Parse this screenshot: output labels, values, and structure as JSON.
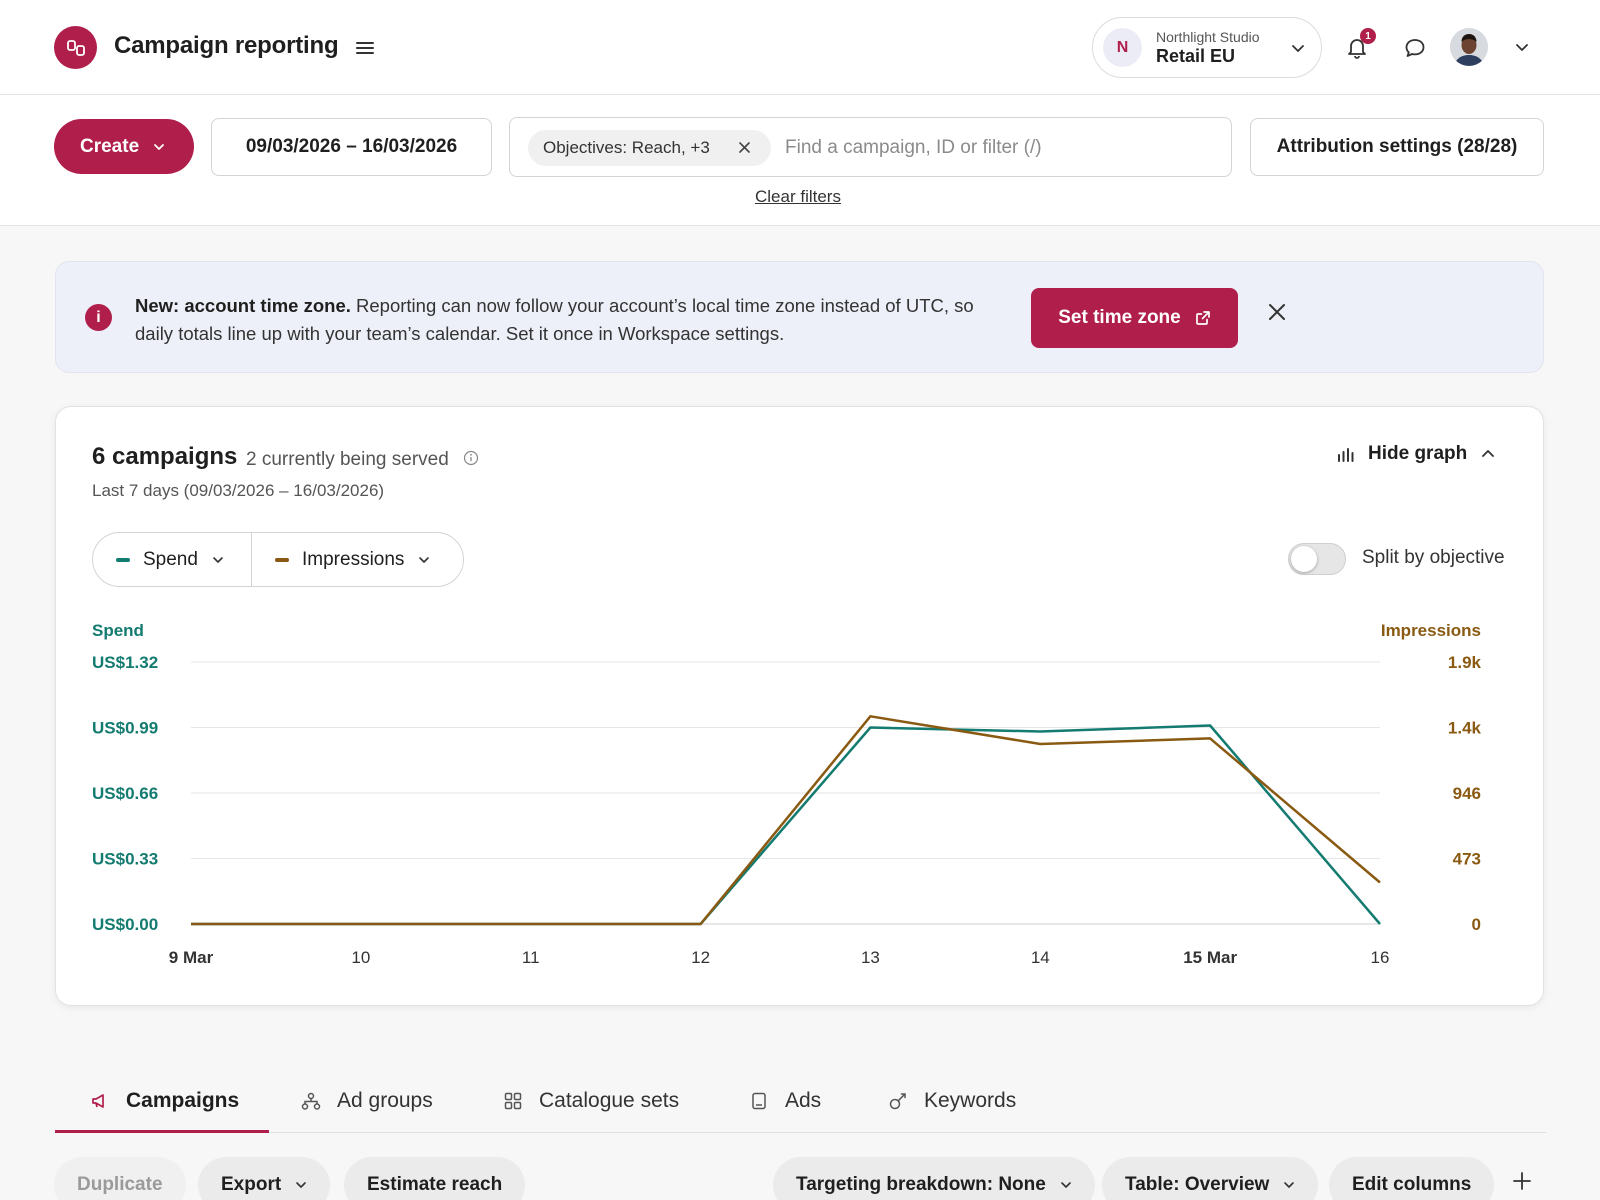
{
  "header": {
    "title": "Campaign reporting",
    "account_org": "Northlight Studio",
    "account_name": "Retail EU",
    "account_initial": "N",
    "notification_count": "1"
  },
  "filters": {
    "create_label": "Create",
    "date_range": "09/03/2026 – 16/03/2026",
    "chip_label": "Objectives: Reach, +3",
    "search_placeholder": "Find a campaign, ID or filter (/)",
    "clear_filters": "Clear filters",
    "attribution": "Attribution settings (28/28)"
  },
  "banner": {
    "bold": "New: account time zone.",
    "text": " Reporting can now follow your account’s local time zone instead of UTC, so daily totals line up with your team’s calendar. Set it once in Workspace settings.",
    "button": "Set time zone",
    "icon": "info-icon"
  },
  "card": {
    "title": "6 campaigns",
    "serving": "2 currently being served",
    "range": "Last 7 days (09/03/2026 – 16/03/2026)",
    "hide_graph": "Hide graph",
    "metric_1": "Spend",
    "metric_2": "Impressions",
    "split_label": "Split by objective",
    "split_enabled": false
  },
  "colors": {
    "brand": "#b01f4c",
    "spend": "#137b70",
    "impressions": "#8a5a12"
  },
  "chart_data": {
    "type": "line",
    "x": [
      "9 Mar",
      "10",
      "11",
      "12",
      "13",
      "14",
      "15 Mar",
      "16"
    ],
    "series": [
      {
        "name": "Spend",
        "axis": "left",
        "color": "#137b70",
        "values": [
          0,
          0,
          0,
          0,
          0.99,
          0.97,
          1.0,
          0
        ]
      },
      {
        "name": "Impressions",
        "axis": "right",
        "color": "#8a5a12",
        "values": [
          0,
          0,
          0,
          0,
          1500,
          1300,
          1340,
          300
        ]
      }
    ],
    "y_left": {
      "label": "Spend",
      "ticks": [
        "US$0.00",
        "US$0.33",
        "US$0.66",
        "US$0.99",
        "US$1.32"
      ],
      "range": [
        0,
        1.32
      ]
    },
    "y_right": {
      "label": "Impressions",
      "ticks": [
        "0",
        "473",
        "946",
        "1.4k",
        "1.9k"
      ],
      "range": [
        0,
        1892
      ]
    },
    "bold_x_ticks": [
      "9 Mar",
      "15 Mar"
    ],
    "grid": true
  },
  "tabs": [
    {
      "label": "Campaigns",
      "icon": "megaphone-icon",
      "active": true
    },
    {
      "label": "Ad groups",
      "icon": "hierarchy-icon",
      "active": false
    },
    {
      "label": "Catalogue sets",
      "icon": "grid-icon",
      "active": false
    },
    {
      "label": "Ads",
      "icon": "ad-card-icon",
      "active": false
    },
    {
      "label": "Keywords",
      "icon": "key-icon",
      "active": false
    }
  ],
  "actions": {
    "duplicate": "Duplicate",
    "export": "Export",
    "estimate": "Estimate reach",
    "targeting": "Targeting breakdown: None",
    "table": "Table: Overview",
    "edit_columns": "Edit columns"
  }
}
